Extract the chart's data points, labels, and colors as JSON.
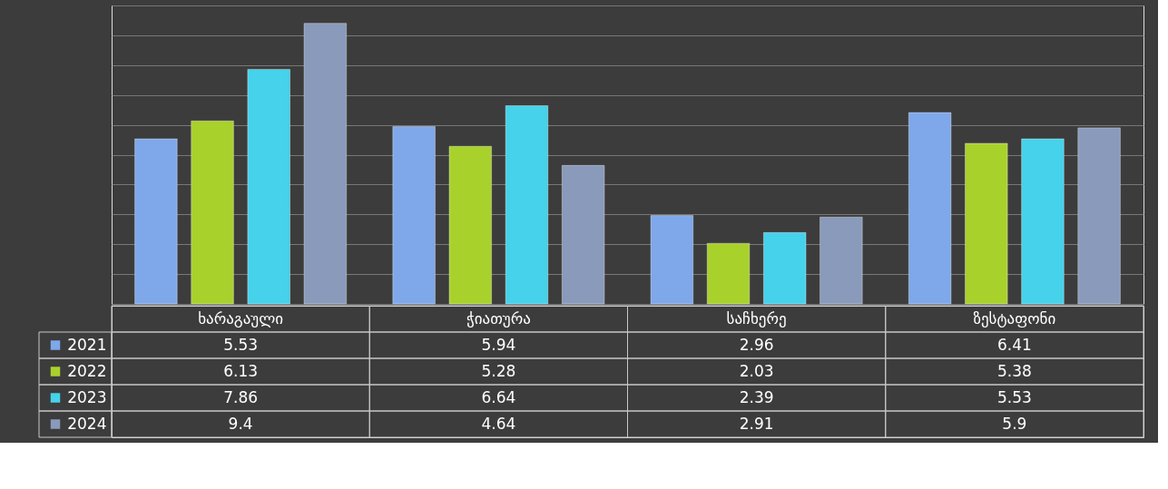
{
  "chart_data": {
    "type": "bar",
    "categories": [
      "ხარაგაული",
      "ჭიათურა",
      "საჩხერე",
      "ზესტაფონი"
    ],
    "series": [
      {
        "name": "2021",
        "color": "#7fa8ea",
        "values": [
          5.53,
          5.94,
          2.96,
          6.41
        ]
      },
      {
        "name": "2022",
        "color": "#a9d12c",
        "values": [
          6.13,
          5.28,
          2.03,
          5.38
        ]
      },
      {
        "name": "2023",
        "color": "#45d2ea",
        "values": [
          7.86,
          6.64,
          2.39,
          5.53
        ]
      },
      {
        "name": "2024",
        "color": "#8a9aba",
        "values": [
          9.4,
          4.64,
          2.91,
          5.9
        ]
      }
    ],
    "ylim": [
      0,
      10
    ],
    "yticks": [
      {
        "value": 0,
        "label": null
      },
      {
        "value": 1,
        "label": null
      },
      {
        "value": 2,
        "label": null
      },
      {
        "value": 3,
        "label": null
      },
      {
        "value": 4,
        "label": null
      },
      {
        "value": 5,
        "label": null
      },
      {
        "value": 6,
        "label": null
      },
      {
        "value": 7,
        "label": null
      },
      {
        "value": 8,
        "label": null
      },
      {
        "value": 9,
        "label": null
      },
      {
        "value": 10,
        "label": null
      }
    ],
    "grid": "y",
    "tick_labels": "x",
    "data_labels": true,
    "legend": "bottom left"
  }
}
